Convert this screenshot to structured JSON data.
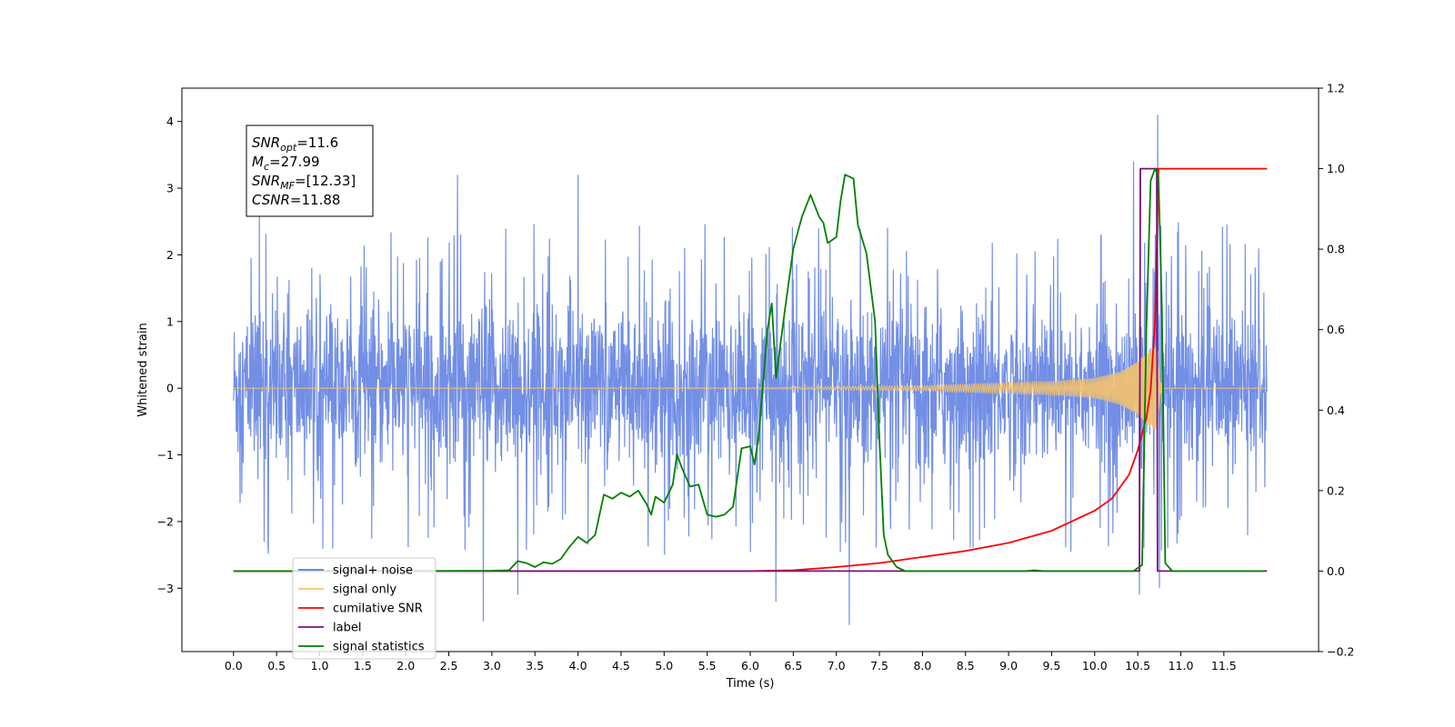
{
  "chart_data": {
    "type": "line",
    "xlabel": "Time (s)",
    "ylabel_left": "Whitened strain",
    "ylabel_right": "",
    "xlim": [
      -0.6,
      12.6
    ],
    "ylim_left": [
      -3.95,
      4.5
    ],
    "ylim_right": [
      -0.2,
      1.2
    ],
    "x_ticks": [
      "0.0",
      "0.5",
      "1.0",
      "1.5",
      "2.0",
      "2.5",
      "3.0",
      "3.5",
      "4.0",
      "4.5",
      "5.0",
      "5.5",
      "6.0",
      "6.5",
      "7.0",
      "7.5",
      "8.0",
      "8.5",
      "9.0",
      "9.5",
      "10.0",
      "10.5",
      "11.0",
      "11.5"
    ],
    "y_ticks_left": [
      "−3",
      "−2",
      "−1",
      "0",
      "1",
      "2",
      "3",
      "4"
    ],
    "y_ticks_right": [
      "−0.2",
      "0.0",
      "0.2",
      "0.4",
      "0.6",
      "0.8",
      "1.0",
      "1.2"
    ],
    "grid": false,
    "legend_position": "lower-left",
    "info_box": {
      "lines": [
        {
          "main": "SNR",
          "sub": "opt",
          "rest": "=11.6"
        },
        {
          "main": "M",
          "sub": "c",
          "rest": "=27.99"
        },
        {
          "main": "SNR",
          "sub": "MF",
          "rest": "=[12.33]"
        },
        {
          "main": "CSNR",
          "sub": "",
          "rest": "=11.88"
        }
      ]
    },
    "series": [
      {
        "name": "signal+ noise",
        "axis": "left",
        "color": "#5b7be0",
        "kind": "noise",
        "x_range": [
          0.0,
          12.0
        ],
        "typical_amplitude": [
          -1.7,
          1.8
        ],
        "peak_spikes": [
          [
            0.3,
            2.6
          ],
          [
            2.6,
            3.2
          ],
          [
            4.0,
            3.2
          ],
          [
            10.45,
            3.4
          ],
          [
            10.73,
            4.1
          ],
          [
            10.52,
            -3.1
          ],
          [
            10.75,
            -3.0
          ],
          [
            2.9,
            -3.5
          ],
          [
            7.15,
            -3.55
          ],
          [
            3.3,
            -3.1
          ],
          [
            6.3,
            -3.2
          ]
        ]
      },
      {
        "name": "signal only",
        "axis": "left",
        "color": "#f5c26b",
        "kind": "chirp",
        "x_range": [
          0.0,
          12.0
        ],
        "envelope": [
          [
            0.0,
            0.0
          ],
          [
            6.0,
            0.01
          ],
          [
            8.0,
            0.04
          ],
          [
            9.5,
            0.1
          ],
          [
            10.0,
            0.15
          ],
          [
            10.3,
            0.25
          ],
          [
            10.5,
            0.4
          ],
          [
            10.65,
            0.6
          ],
          [
            10.72,
            0.65
          ],
          [
            10.76,
            0.1
          ],
          [
            10.8,
            0.0
          ],
          [
            12.0,
            0.0
          ]
        ]
      },
      {
        "name": "cumilative SNR",
        "axis": "right",
        "color": "#ff0000",
        "kind": "line",
        "points": [
          [
            0.0,
            0.0
          ],
          [
            6.0,
            0.0
          ],
          [
            6.5,
            0.002
          ],
          [
            7.0,
            0.01
          ],
          [
            7.5,
            0.02
          ],
          [
            8.0,
            0.035
          ],
          [
            8.5,
            0.05
          ],
          [
            9.0,
            0.07
          ],
          [
            9.5,
            0.1
          ],
          [
            10.0,
            0.15
          ],
          [
            10.2,
            0.18
          ],
          [
            10.4,
            0.24
          ],
          [
            10.5,
            0.3
          ],
          [
            10.6,
            0.38
          ],
          [
            10.65,
            0.45
          ],
          [
            10.7,
            0.62
          ],
          [
            10.72,
            0.8
          ],
          [
            10.74,
            1.0
          ],
          [
            10.8,
            1.0
          ],
          [
            12.0,
            1.0
          ]
        ]
      },
      {
        "name": "label",
        "axis": "right",
        "color": "#7b0f7b",
        "kind": "line",
        "points": [
          [
            0.0,
            0.0
          ],
          [
            10.52,
            0.0
          ],
          [
            10.53,
            1.0
          ],
          [
            10.72,
            1.0
          ],
          [
            10.73,
            0.0
          ],
          [
            12.0,
            0.0
          ]
        ]
      },
      {
        "name": "signal statistics",
        "axis": "right",
        "color": "#008000",
        "kind": "line",
        "points": [
          [
            0.0,
            0.0
          ],
          [
            2.0,
            0.0
          ],
          [
            3.0,
            0.001
          ],
          [
            3.2,
            0.002
          ],
          [
            3.3,
            0.025
          ],
          [
            3.4,
            0.02
          ],
          [
            3.5,
            0.01
          ],
          [
            3.6,
            0.022
          ],
          [
            3.7,
            0.018
          ],
          [
            3.8,
            0.03
          ],
          [
            3.9,
            0.06
          ],
          [
            4.0,
            0.085
          ],
          [
            4.1,
            0.07
          ],
          [
            4.2,
            0.09
          ],
          [
            4.3,
            0.19
          ],
          [
            4.4,
            0.18
          ],
          [
            4.5,
            0.195
          ],
          [
            4.6,
            0.185
          ],
          [
            4.7,
            0.2
          ],
          [
            4.8,
            0.165
          ],
          [
            4.85,
            0.14
          ],
          [
            4.9,
            0.185
          ],
          [
            5.0,
            0.17
          ],
          [
            5.1,
            0.215
          ],
          [
            5.15,
            0.29
          ],
          [
            5.2,
            0.26
          ],
          [
            5.3,
            0.21
          ],
          [
            5.4,
            0.215
          ],
          [
            5.5,
            0.14
          ],
          [
            5.6,
            0.135
          ],
          [
            5.7,
            0.14
          ],
          [
            5.8,
            0.16
          ],
          [
            5.9,
            0.305
          ],
          [
            6.0,
            0.31
          ],
          [
            6.05,
            0.265
          ],
          [
            6.1,
            0.34
          ],
          [
            6.2,
            0.6
          ],
          [
            6.25,
            0.665
          ],
          [
            6.3,
            0.48
          ],
          [
            6.4,
            0.645
          ],
          [
            6.5,
            0.8
          ],
          [
            6.6,
            0.88
          ],
          [
            6.7,
            0.935
          ],
          [
            6.8,
            0.88
          ],
          [
            6.85,
            0.865
          ],
          [
            6.9,
            0.815
          ],
          [
            7.0,
            0.83
          ],
          [
            7.05,
            0.92
          ],
          [
            7.1,
            0.985
          ],
          [
            7.2,
            0.975
          ],
          [
            7.25,
            0.86
          ],
          [
            7.35,
            0.79
          ],
          [
            7.45,
            0.62
          ],
          [
            7.5,
            0.33
          ],
          [
            7.55,
            0.09
          ],
          [
            7.6,
            0.04
          ],
          [
            7.7,
            0.01
          ],
          [
            7.8,
            0.0
          ],
          [
            9.2,
            0.0
          ],
          [
            9.3,
            0.002
          ],
          [
            9.4,
            0.0
          ],
          [
            10.45,
            0.0
          ],
          [
            10.55,
            0.015
          ],
          [
            10.6,
            0.6
          ],
          [
            10.65,
            0.97
          ],
          [
            10.7,
            1.0
          ],
          [
            10.74,
            0.98
          ],
          [
            10.78,
            0.65
          ],
          [
            10.82,
            0.02
          ],
          [
            10.9,
            0.0
          ],
          [
            11.95,
            0.0
          ]
        ]
      }
    ]
  }
}
